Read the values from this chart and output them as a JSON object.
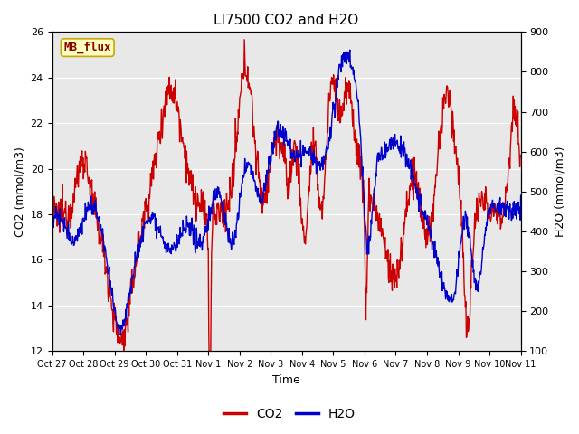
{
  "title": "LI7500 CO2 and H2O",
  "xlabel": "Time",
  "ylabel_left": "CO2 (mmol/m3)",
  "ylabel_right": "H2O (mmol/m3)",
  "ylim_left": [
    12,
    26
  ],
  "ylim_right": [
    100,
    900
  ],
  "yticks_left": [
    12,
    14,
    16,
    18,
    20,
    22,
    24,
    26
  ],
  "yticks_right": [
    100,
    200,
    300,
    400,
    500,
    600,
    700,
    800,
    900
  ],
  "xtick_labels": [
    "Oct 27",
    "Oct 28",
    "Oct 29",
    "Oct 30",
    "Oct 31",
    "Nov 1",
    "Nov 2",
    "Nov 3",
    "Nov 4",
    "Nov 5",
    "Nov 6",
    "Nov 7",
    "Nov 8",
    "Nov 9",
    "Nov 10",
    "Nov 11"
  ],
  "co2_color": "#cc0000",
  "h2o_color": "#0000cc",
  "fig_facecolor": "#ffffff",
  "plot_bg_color": "#e8e8e8",
  "legend_box_facecolor": "#ffffc0",
  "legend_box_edgecolor": "#c8a800",
  "legend_label": "MB_flux",
  "legend_label_color": "#880000",
  "title_fontsize": 11,
  "axis_label_fontsize": 9,
  "tick_fontsize": 8,
  "legend_fontsize": 9,
  "line_width": 1.0,
  "n_points": 1000
}
